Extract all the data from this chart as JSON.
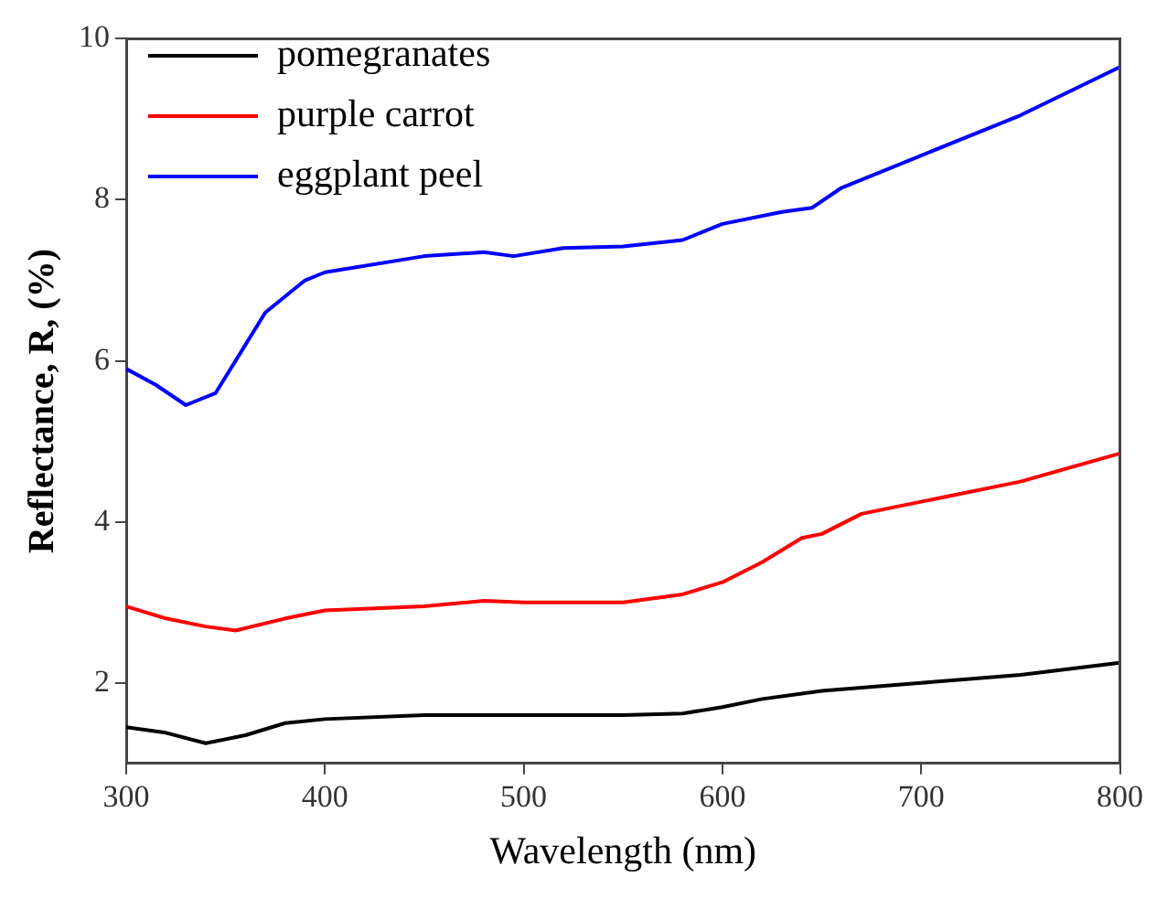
{
  "chart_data": {
    "type": "line",
    "xlabel": "Wavelength (nm)",
    "ylabel": "Reflectance, R, (%)",
    "xlim": [
      300,
      800
    ],
    "xticks": [
      300,
      400,
      500,
      600,
      700,
      800
    ],
    "ylim": [
      1,
      10
    ],
    "yticks": [
      2,
      4,
      6,
      8,
      10
    ],
    "legend": "top left",
    "marker": "none",
    "line_style": "solid",
    "series": [
      {
        "name": "pomegranates",
        "color": "#000000",
        "x": [
          300,
          320,
          340,
          360,
          380,
          400,
          450,
          500,
          550,
          580,
          600,
          620,
          650,
          700,
          750,
          800
        ],
        "values": [
          1.45,
          1.38,
          1.25,
          1.35,
          1.5,
          1.55,
          1.6,
          1.6,
          1.6,
          1.62,
          1.7,
          1.8,
          1.9,
          2.0,
          2.1,
          2.25
        ]
      },
      {
        "name": "purple carrot",
        "color": "#ff0000",
        "x": [
          300,
          320,
          340,
          355,
          380,
          400,
          450,
          480,
          500,
          550,
          580,
          600,
          620,
          640,
          650,
          670,
          700,
          750,
          800
        ],
        "values": [
          2.95,
          2.8,
          2.7,
          2.65,
          2.8,
          2.9,
          2.95,
          3.02,
          3.0,
          3.0,
          3.1,
          3.25,
          3.5,
          3.8,
          3.85,
          4.1,
          4.25,
          4.5,
          4.85
        ]
      },
      {
        "name": "eggplant peel",
        "color": "#0000ff",
        "x": [
          300,
          315,
          330,
          345,
          355,
          370,
          390,
          400,
          450,
          480,
          495,
          520,
          550,
          580,
          600,
          630,
          645,
          660,
          700,
          750,
          800
        ],
        "values": [
          5.9,
          5.7,
          5.45,
          5.6,
          6.0,
          6.6,
          7.0,
          7.1,
          7.3,
          7.35,
          7.3,
          7.4,
          7.42,
          7.5,
          7.7,
          7.85,
          7.9,
          8.15,
          8.55,
          9.05,
          9.65
        ]
      }
    ]
  }
}
